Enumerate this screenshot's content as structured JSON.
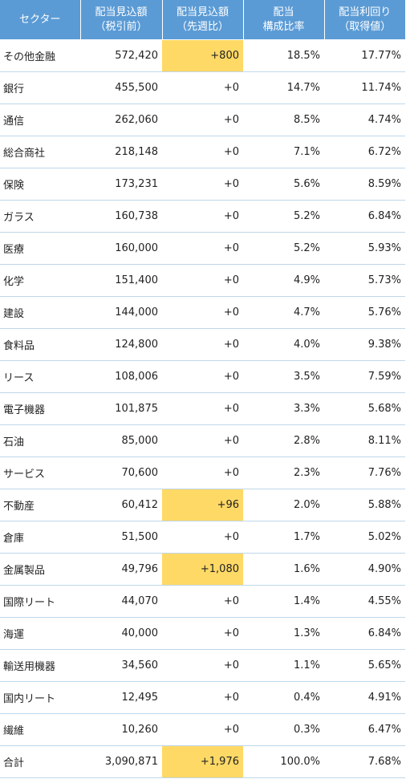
{
  "headers": [
    [
      "セクター"
    ],
    [
      "配当見込額",
      "（税引前）"
    ],
    [
      "配当見込額",
      "（先週比）"
    ],
    [
      "配当",
      "構成比率"
    ],
    [
      "配当利回り",
      "（取得値）"
    ]
  ],
  "colors": {
    "header_bg": "#5b9bd5",
    "header_text": "#ffffff",
    "highlight": "#ffd966",
    "row_border": "#bfd7ea"
  },
  "rows": [
    {
      "sector": "その他金融",
      "amount": "572,420",
      "change": "+800",
      "ratio": "18.5%",
      "yield": "17.77%",
      "highlight": true
    },
    {
      "sector": "銀行",
      "amount": "455,500",
      "change": "+0",
      "ratio": "14.7%",
      "yield": "11.74%",
      "highlight": false
    },
    {
      "sector": "通信",
      "amount": "262,060",
      "change": "+0",
      "ratio": "8.5%",
      "yield": "4.74%",
      "highlight": false
    },
    {
      "sector": "総合商社",
      "amount": "218,148",
      "change": "+0",
      "ratio": "7.1%",
      "yield": "6.72%",
      "highlight": false
    },
    {
      "sector": "保険",
      "amount": "173,231",
      "change": "+0",
      "ratio": "5.6%",
      "yield": "8.59%",
      "highlight": false
    },
    {
      "sector": "ガラス",
      "amount": "160,738",
      "change": "+0",
      "ratio": "5.2%",
      "yield": "6.84%",
      "highlight": false
    },
    {
      "sector": "医療",
      "amount": "160,000",
      "change": "+0",
      "ratio": "5.2%",
      "yield": "5.93%",
      "highlight": false
    },
    {
      "sector": "化学",
      "amount": "151,400",
      "change": "+0",
      "ratio": "4.9%",
      "yield": "5.73%",
      "highlight": false
    },
    {
      "sector": "建設",
      "amount": "144,000",
      "change": "+0",
      "ratio": "4.7%",
      "yield": "5.76%",
      "highlight": false
    },
    {
      "sector": "食料品",
      "amount": "124,800",
      "change": "+0",
      "ratio": "4.0%",
      "yield": "9.38%",
      "highlight": false
    },
    {
      "sector": "リース",
      "amount": "108,006",
      "change": "+0",
      "ratio": "3.5%",
      "yield": "7.59%",
      "highlight": false
    },
    {
      "sector": "電子機器",
      "amount": "101,875",
      "change": "+0",
      "ratio": "3.3%",
      "yield": "5.68%",
      "highlight": false
    },
    {
      "sector": "石油",
      "amount": "85,000",
      "change": "+0",
      "ratio": "2.8%",
      "yield": "8.11%",
      "highlight": false
    },
    {
      "sector": "サービス",
      "amount": "70,600",
      "change": "+0",
      "ratio": "2.3%",
      "yield": "7.76%",
      "highlight": false
    },
    {
      "sector": "不動産",
      "amount": "60,412",
      "change": "+96",
      "ratio": "2.0%",
      "yield": "5.88%",
      "highlight": true
    },
    {
      "sector": "倉庫",
      "amount": "51,500",
      "change": "+0",
      "ratio": "1.7%",
      "yield": "5.02%",
      "highlight": false
    },
    {
      "sector": "金属製品",
      "amount": "49,796",
      "change": "+1,080",
      "ratio": "1.6%",
      "yield": "4.90%",
      "highlight": true
    },
    {
      "sector": "国際リート",
      "amount": "44,070",
      "change": "+0",
      "ratio": "1.4%",
      "yield": "4.55%",
      "highlight": false
    },
    {
      "sector": "海運",
      "amount": "40,000",
      "change": "+0",
      "ratio": "1.3%",
      "yield": "6.84%",
      "highlight": false
    },
    {
      "sector": "輸送用機器",
      "amount": "34,560",
      "change": "+0",
      "ratio": "1.1%",
      "yield": "5.65%",
      "highlight": false
    },
    {
      "sector": "国内リート",
      "amount": "12,495",
      "change": "+0",
      "ratio": "0.4%",
      "yield": "4.91%",
      "highlight": false
    },
    {
      "sector": "繊維",
      "amount": "10,260",
      "change": "+0",
      "ratio": "0.3%",
      "yield": "6.47%",
      "highlight": false
    }
  ],
  "total": {
    "sector": "合計",
    "amount": "3,090,871",
    "change": "+1,976",
    "ratio": "100.0%",
    "yield": "7.68%",
    "highlight": true
  }
}
